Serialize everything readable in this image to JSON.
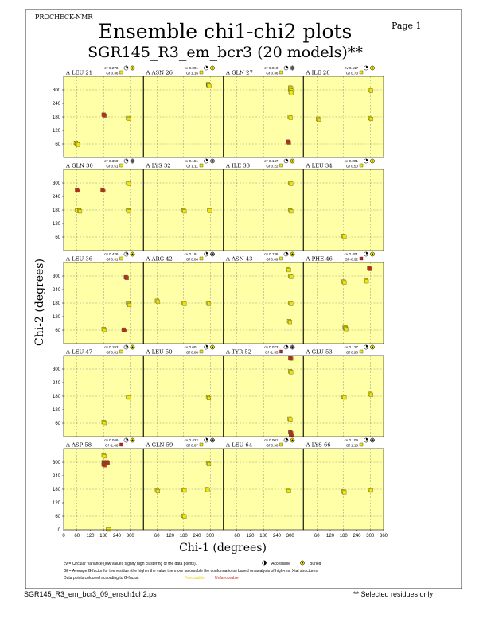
{
  "header": {
    "program": "PROCHECK-NMR",
    "title": "Ensemble chi1-chi2 plots",
    "subtitle": "SGR145_R3_em_bcr3 (20 models)**",
    "page": "Page  1"
  },
  "footer": {
    "filename": "SGR145_R3_em_bcr3_09_ensch1ch2.ps",
    "note": "** Selected residues only"
  },
  "legend": {
    "cv_def": "cv = Circular Variance (low values signify high clustering of the data points).",
    "accessible": "Accessible",
    "buried": "Buried",
    "gf_def": "Gf = Average G-factor for the residue (the higher the value the more favourable the conformations) based on analysis of high-res. Xtal structures",
    "colour_note": "Data points coloured according to G-factor:",
    "favourable": "Favourable",
    "unfavourable": "Unfavourable",
    "colors": {
      "favourable": "#f3e600",
      "unfavourable": "#c0281c",
      "panel_bg": "#ffffa8"
    }
  },
  "chart_data": {
    "type": "scatter",
    "xlabel": "Chi-1 (degrees)",
    "ylabel": "Chi-2 (degrees)",
    "xlim": [
      0,
      360
    ],
    "ylim": [
      0,
      360
    ],
    "x_ticks": [
      "0",
      "60",
      "120",
      "180",
      "240",
      "300",
      "360"
    ],
    "y_ticks": [
      "0",
      "60",
      "120",
      "180",
      "240",
      "300"
    ],
    "grid": "dashed at 60, 180, 300",
    "panels": [
      {
        "label": "A LEU 21",
        "cv": "cv 0.278",
        "gf": "Gf 0.36",
        "acc": "buried",
        "points": [
          [
            55,
            65,
            "f"
          ],
          [
            62,
            60,
            "f"
          ],
          [
            180,
            190,
            "u"
          ],
          [
            290,
            175,
            "f"
          ]
        ]
      },
      {
        "label": "A ASN 26",
        "cv": "cv 0.001",
        "gf": "Gf 1.16",
        "acc": "buried",
        "points": [
          [
            290,
            325,
            "f"
          ],
          [
            292,
            322,
            "f"
          ]
        ]
      },
      {
        "label": "A GLN 27",
        "cv": "cv 0.010",
        "gf": "Gf 0.36",
        "acc": "accessible",
        "points": [
          [
            300,
            310,
            "f"
          ],
          [
            300,
            300,
            "f"
          ],
          [
            302,
            290,
            "f"
          ],
          [
            298,
            180,
            "f"
          ],
          [
            290,
            70,
            "u"
          ]
        ]
      },
      {
        "label": "A ILE 28",
        "cv": "cv 0.117",
        "gf": "Gf 0.73",
        "acc": "buried",
        "points": [
          [
            300,
            300,
            "f"
          ],
          [
            300,
            175,
            "f"
          ],
          [
            65,
            172,
            "f"
          ]
        ]
      },
      {
        "label": "A GLN 30",
        "cv": "cv 0.350",
        "gf": "Gf 0.51",
        "acc": "accessible",
        "points": [
          [
            60,
            270,
            "u"
          ],
          [
            175,
            270,
            "u"
          ],
          [
            290,
            300,
            "f"
          ],
          [
            60,
            180,
            "f"
          ],
          [
            70,
            178,
            "f"
          ],
          [
            290,
            178,
            "f"
          ]
        ]
      },
      {
        "label": "A LYS 32",
        "cv": "cv 0.151",
        "gf": "Gf 1.11",
        "acc": "accessible",
        "points": [
          [
            180,
            178,
            "f"
          ],
          [
            295,
            180,
            "f"
          ]
        ]
      },
      {
        "label": "A ILE 33",
        "cv": "cv 0.147",
        "gf": "Gf 0.22",
        "acc": "buried",
        "points": [
          [
            300,
            300,
            "f"
          ],
          [
            300,
            178,
            "f"
          ]
        ]
      },
      {
        "label": "A LEU 34",
        "cv": "cv 0.001",
        "gf": "Gf 0.50",
        "acc": "buried",
        "points": [
          [
            180,
            65,
            "f"
          ]
        ]
      },
      {
        "label": "A LEU 36",
        "cv": "cv 0.426",
        "gf": "Gf 0.31",
        "acc": "buried",
        "points": [
          [
            180,
            65,
            "f"
          ],
          [
            270,
            62,
            "u"
          ],
          [
            280,
            295,
            "u"
          ],
          [
            290,
            180,
            "f"
          ],
          [
            292,
            175,
            "f"
          ]
        ]
      },
      {
        "label": "A ARG 42",
        "cv": "cv 0.191",
        "gf": "Gf 0.86",
        "acc": "accessible",
        "points": [
          [
            60,
            190,
            "f"
          ],
          [
            180,
            180,
            "f"
          ],
          [
            290,
            180,
            "f"
          ]
        ]
      },
      {
        "label": "A ASN 43",
        "cv": "cv 0.136",
        "gf": "Gf 0.89",
        "acc": "buried",
        "points": [
          [
            290,
            330,
            "f"
          ],
          [
            300,
            300,
            "f"
          ],
          [
            300,
            180,
            "f"
          ],
          [
            295,
            100,
            "f"
          ]
        ]
      },
      {
        "label": "A PHE 46",
        "cv": "cv 0.401",
        "gf": "Gf -0.32",
        "acc": "buried",
        "points": [
          [
            295,
            335,
            "u"
          ],
          [
            280,
            280,
            "f"
          ],
          [
            180,
            275,
            "f"
          ],
          [
            185,
            75,
            "f"
          ],
          [
            188,
            68,
            "f"
          ]
        ]
      },
      {
        "label": "A LEU 47",
        "cv": "cv 0.193",
        "gf": "Gf 0.81",
        "acc": "buried",
        "points": [
          [
            290,
            178,
            "f"
          ],
          [
            180,
            65,
            "f"
          ]
        ]
      },
      {
        "label": "A LEU 50",
        "cv": "cv 0.001",
        "gf": "Gf 0.88",
        "acc": "buried",
        "points": [
          [
            290,
            175,
            "f"
          ]
        ]
      },
      {
        "label": "A TYR 52",
        "cv": "cv 0.073",
        "gf": "Gf -1.35",
        "acc": "accessible",
        "points": [
          [
            300,
            350,
            "u"
          ],
          [
            300,
            290,
            "f"
          ],
          [
            297,
            80,
            "f"
          ],
          [
            300,
            20,
            "u"
          ],
          [
            303,
            10,
            "u"
          ]
        ]
      },
      {
        "label": "A GLU 53",
        "cv": "cv 0.127",
        "gf": "Gf 0.96",
        "acc": "buried",
        "points": [
          [
            180,
            178,
            "f"
          ],
          [
            300,
            190,
            "f"
          ]
        ]
      },
      {
        "label": "A ASP 58",
        "cv": "cv 0.046",
        "gf": "Gf -1.08",
        "acc": "buried",
        "points": [
          [
            180,
            330,
            "f"
          ],
          [
            180,
            300,
            "u"
          ],
          [
            195,
            300,
            "u"
          ],
          [
            180,
            290,
            "u"
          ],
          [
            200,
            5,
            "f"
          ]
        ]
      },
      {
        "label": "A GLN 59",
        "cv": "cv 0.422",
        "gf": "Gf 0.67",
        "acc": "accessible",
        "points": [
          [
            290,
            295,
            "f"
          ],
          [
            60,
            175,
            "f"
          ],
          [
            180,
            178,
            "f"
          ],
          [
            285,
            180,
            "f"
          ],
          [
            180,
            62,
            "f"
          ]
        ]
      },
      {
        "label": "A LEU 64",
        "cv": "cv 0.001",
        "gf": "Gf 0.90",
        "acc": "buried",
        "points": [
          [
            290,
            175,
            "f"
          ]
        ]
      },
      {
        "label": "A LYS 66",
        "cv": "cv 0.109",
        "gf": "Gf 1.13",
        "acc": "accessible",
        "points": [
          [
            180,
            170,
            "f"
          ],
          [
            300,
            178,
            "f"
          ]
        ]
      }
    ]
  }
}
